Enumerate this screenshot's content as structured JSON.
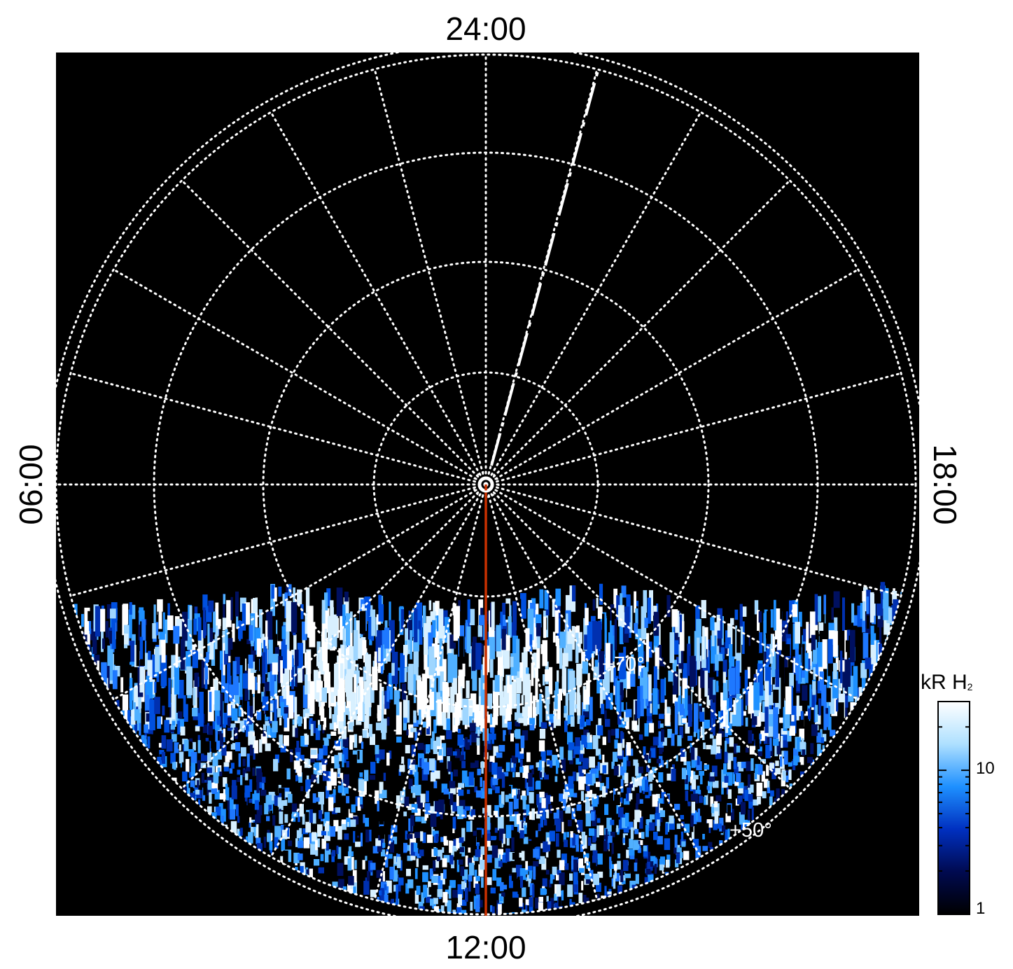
{
  "local_time_labels": {
    "top": "24:00",
    "bottom": "12:00",
    "left": "06:00",
    "right": "18:00"
  },
  "latitude_labels": [
    {
      "text": "+70°",
      "latitude": 70
    },
    {
      "text": "+50°",
      "latitude": 50
    }
  ],
  "colorbar": {
    "title": "kR H",
    "title_subscript": "2",
    "scale": "log",
    "range": [
      1,
      30
    ],
    "tick_labels": [
      "10",
      "1"
    ],
    "colors": [
      "#000000",
      "#000a50",
      "#0030c0",
      "#1e90ff",
      "#aee0ff",
      "#ffffff"
    ]
  },
  "colors": {
    "background": "#000000",
    "grid": "#ffffff",
    "meridian_line": "#c83000",
    "emission_low": "#002080",
    "emission_high": "#ffffff"
  },
  "grid": {
    "latitude_circles_deg": [
      80,
      70,
      60,
      50,
      40
    ],
    "meridian_spacing_hours": 1
  },
  "chart_data": {
    "type": "heatmap",
    "projection": "polar",
    "colorbar_label": "kR H₂",
    "colorbar_scale": "log",
    "colorbar_range": [
      1,
      30
    ],
    "noon_meridian_local_time": "12:00",
    "dashed_meridian_local_time": "23:00"
  }
}
